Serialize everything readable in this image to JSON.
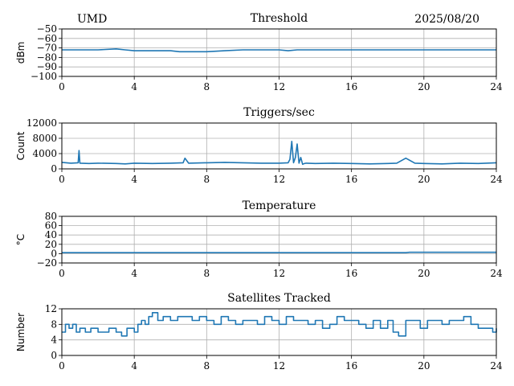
{
  "header": {
    "station": "UMD",
    "date": "2025/08/20"
  },
  "colors": {
    "line": "#1f77b4",
    "grid": "#b0b0b0",
    "axis": "#000000"
  },
  "chart_data": [
    {
      "type": "line",
      "title": "Threshold",
      "xlabel": "",
      "ylabel": "dBm",
      "xlim": [
        0,
        24
      ],
      "ylim": [
        -100,
        -50
      ],
      "xticks": [
        0,
        4,
        8,
        12,
        16,
        20,
        24
      ],
      "yticks": [
        -100,
        -90,
        -80,
        -70,
        -60,
        -50
      ],
      "ytick_labels": [
        "−100",
        "−90",
        "−80",
        "−70",
        "−60",
        "−50"
      ],
      "grid": true,
      "series": [
        {
          "x": [
            0,
            1,
            2,
            3,
            3.5,
            4,
            5,
            6,
            6.5,
            7,
            8,
            9,
            10,
            11,
            12,
            12.5,
            13,
            14,
            15,
            16,
            17,
            18,
            19,
            20,
            21,
            22,
            23,
            24
          ],
          "y": [
            -72,
            -72,
            -72,
            -71,
            -72,
            -73,
            -73,
            -73,
            -74,
            -74,
            -74,
            -73,
            -72,
            -72,
            -72,
            -73,
            -72,
            -72,
            -72,
            -72,
            -72,
            -72,
            -72,
            -72,
            -72,
            -72,
            -72,
            -72
          ]
        }
      ]
    },
    {
      "type": "line",
      "title": "Triggers/sec",
      "xlabel": "",
      "ylabel": "Count",
      "xlim": [
        0,
        24
      ],
      "ylim": [
        0,
        12000
      ],
      "xticks": [
        0,
        4,
        8,
        12,
        16,
        20,
        24
      ],
      "yticks": [
        0,
        4000,
        8000,
        12000
      ],
      "ytick_labels": [
        "0",
        "4000",
        "8000",
        "12000"
      ],
      "grid": true,
      "series": [
        {
          "x": [
            0,
            0.5,
            0.9,
            0.95,
            1.0,
            1.5,
            2,
            3,
            3.5,
            4,
            5,
            6,
            6.7,
            6.8,
            7,
            8,
            9,
            10,
            11,
            12,
            12.5,
            12.6,
            12.7,
            12.8,
            12.9,
            13.0,
            13.1,
            13.2,
            13.3,
            13.4,
            13.5,
            14,
            15,
            16,
            17,
            18,
            18.5,
            19,
            19.5,
            20,
            21,
            22,
            23,
            24
          ],
          "y": [
            1700,
            1500,
            1600,
            4800,
            1500,
            1400,
            1500,
            1400,
            1300,
            1500,
            1400,
            1500,
            1600,
            2800,
            1500,
            1600,
            1700,
            1600,
            1500,
            1500,
            1600,
            2500,
            7200,
            1600,
            3000,
            6500,
            1500,
            3000,
            1200,
            1400,
            1500,
            1400,
            1500,
            1400,
            1300,
            1400,
            1500,
            2800,
            1500,
            1400,
            1300,
            1500,
            1400,
            1600
          ]
        }
      ]
    },
    {
      "type": "line",
      "title": "Temperature",
      "xlabel": "",
      "ylabel": "°C",
      "xlim": [
        0,
        24
      ],
      "ylim": [
        -20,
        80
      ],
      "xticks": [
        0,
        4,
        8,
        12,
        16,
        20,
        24
      ],
      "yticks": [
        -20,
        0,
        20,
        40,
        60,
        80
      ],
      "ytick_labels": [
        "−20",
        "0",
        "20",
        "40",
        "60",
        "80"
      ],
      "grid": true,
      "series": [
        {
          "x": [
            0,
            4,
            8,
            12,
            16,
            19,
            19.2,
            20,
            24
          ],
          "y": [
            2,
            2,
            2,
            2,
            2,
            2,
            3,
            3,
            3
          ]
        }
      ]
    },
    {
      "type": "line",
      "title": "Satellites Tracked",
      "xlabel": "",
      "ylabel": "Number",
      "xlim": [
        0,
        24
      ],
      "ylim": [
        0,
        12
      ],
      "xticks": [
        0,
        4,
        8,
        12,
        16,
        20,
        24
      ],
      "yticks": [
        0,
        4,
        8,
        12
      ],
      "ytick_labels": [
        "0",
        "4",
        "8",
        "12"
      ],
      "grid": true,
      "series": [
        {
          "x": [
            0,
            0.2,
            0.4,
            0.6,
            0.8,
            1.0,
            1.3,
            1.6,
            2.0,
            2.3,
            2.6,
            3.0,
            3.3,
            3.6,
            4.0,
            4.2,
            4.4,
            4.6,
            4.8,
            5.0,
            5.3,
            5.6,
            6.0,
            6.4,
            6.8,
            7.2,
            7.6,
            8.0,
            8.4,
            8.8,
            9.2,
            9.6,
            10.0,
            10.4,
            10.8,
            11.2,
            11.6,
            12.0,
            12.4,
            12.8,
            13.2,
            13.6,
            14.0,
            14.4,
            14.8,
            15.2,
            15.6,
            16.0,
            16.4,
            16.8,
            17.2,
            17.6,
            18.0,
            18.3,
            18.6,
            19.0,
            19.4,
            19.8,
            20.2,
            20.6,
            21.0,
            21.4,
            21.8,
            22.2,
            22.6,
            23.0,
            23.4,
            23.8,
            24
          ],
          "y": [
            6,
            8,
            7,
            8,
            6,
            7,
            6,
            7,
            6,
            6,
            7,
            6,
            5,
            7,
            6,
            8,
            9,
            8,
            10,
            11,
            9,
            10,
            9,
            10,
            10,
            9,
            10,
            9,
            8,
            10,
            9,
            8,
            9,
            9,
            8,
            10,
            9,
            8,
            10,
            9,
            9,
            8,
            9,
            7,
            8,
            10,
            9,
            9,
            8,
            7,
            9,
            7,
            9,
            6,
            5,
            9,
            9,
            7,
            9,
            9,
            8,
            9,
            9,
            10,
            8,
            7,
            7,
            6,
            7
          ]
        }
      ]
    }
  ]
}
